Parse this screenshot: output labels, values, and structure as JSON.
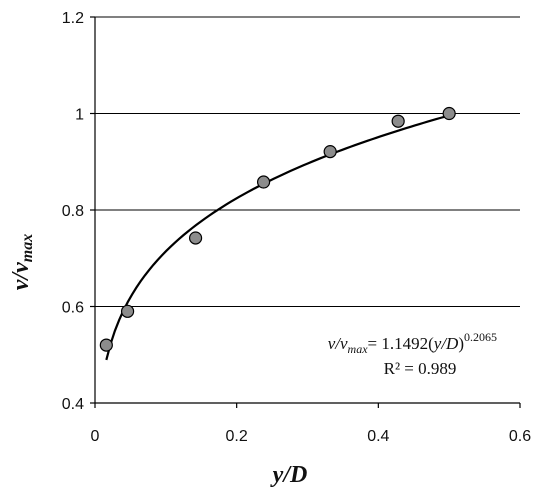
{
  "chart_data": {
    "type": "scatter",
    "xlabel_main": "y/D",
    "ylabel_main": "v/v",
    "ylabel_sub": "max",
    "xlim": [
      0,
      0.6
    ],
    "ylim": [
      0.4,
      1.2
    ],
    "xticks": [
      0,
      0.2,
      0.4,
      0.6
    ],
    "xtick_labels": [
      "0",
      "0.2",
      "0.4",
      "0.6"
    ],
    "yticks": [
      0.4,
      0.6,
      0.8,
      1.0,
      1.2
    ],
    "ytick_labels": [
      "0.4",
      "0.6",
      "0.8",
      "1",
      "1.2"
    ],
    "grid_y": true,
    "grid_x": false,
    "points": [
      {
        "x": 0.016,
        "y": 0.52
      },
      {
        "x": 0.046,
        "y": 0.59
      },
      {
        "x": 0.142,
        "y": 0.742
      },
      {
        "x": 0.238,
        "y": 0.858
      },
      {
        "x": 0.332,
        "y": 0.921
      },
      {
        "x": 0.428,
        "y": 0.984
      },
      {
        "x": 0.5,
        "y": 1.0
      }
    ],
    "fit": {
      "coefficient": 1.1492,
      "exponent": 0.2065,
      "x_start": 0.016,
      "x_end": 0.5
    },
    "equation": {
      "lhs_v": "v/v",
      "lhs_sub": "max",
      "eq_mid": "= 1.1492(",
      "eq_var": "y/D",
      "eq_close": ")",
      "eq_exp": "0.2065",
      "r2": "R² = 0.989"
    }
  }
}
